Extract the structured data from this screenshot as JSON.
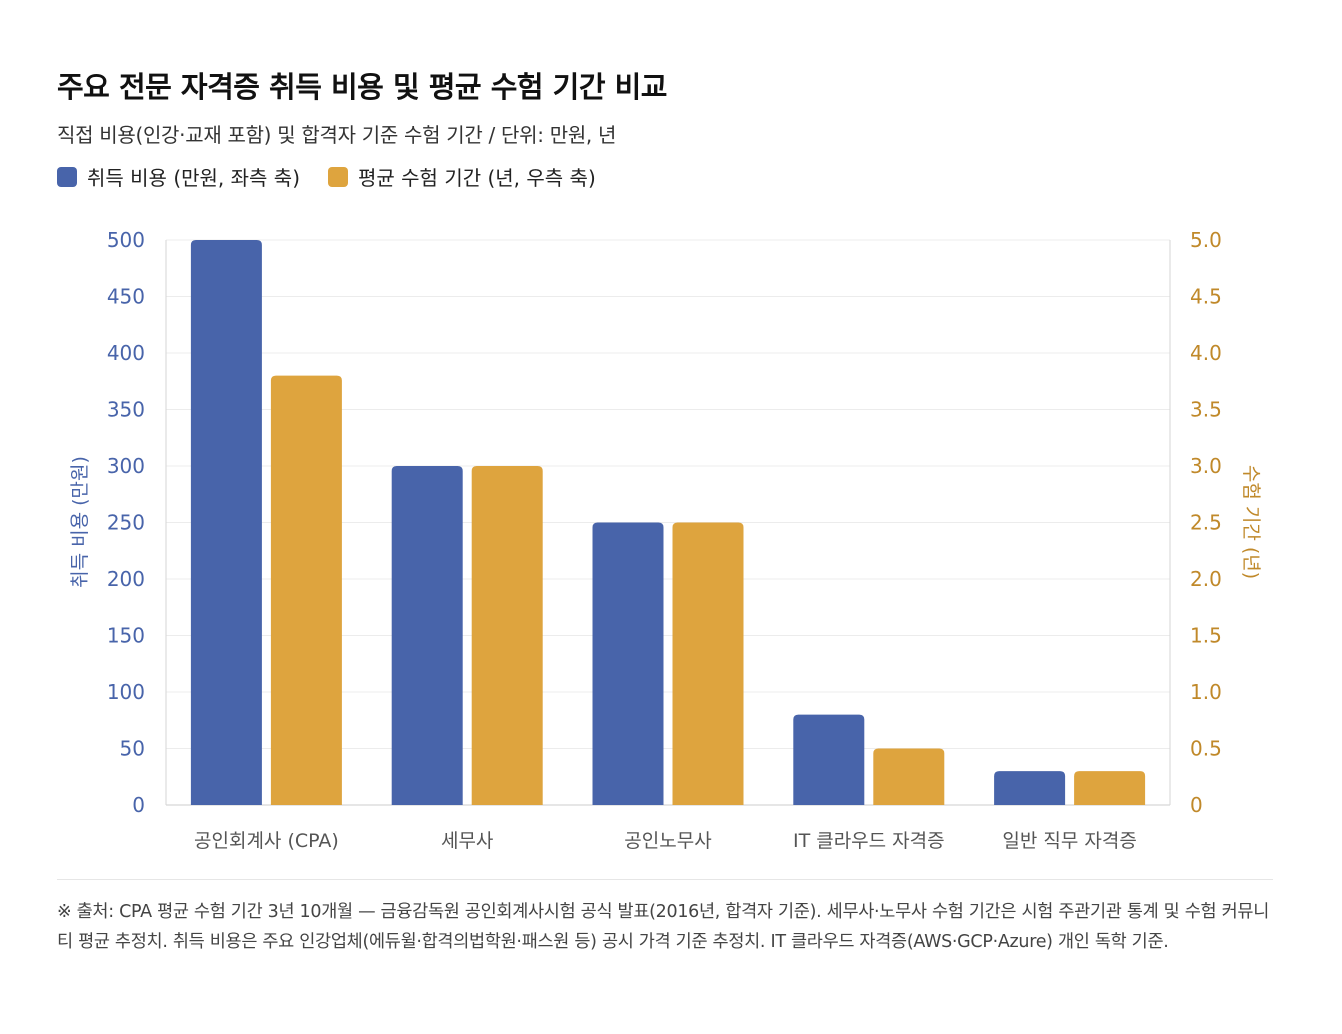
{
  "title": "주요 전문 자격증 취득 비용 및 평균 수험 기간 비교",
  "subtitle": "직접 비용(인강·교재 포함) 및 합격자 기준 수험 기간 / 단위: 만원, 년",
  "legend": [
    {
      "label": "취득 비용 (만원, 좌측 축)",
      "color": "#4864aa"
    },
    {
      "label": "평균 수험 기간 (년, 우측 축)",
      "color": "#dea43e"
    }
  ],
  "note": "※ 출처: CPA 평균 수험 기간 3년 10개월 — 금융감독원 공인회계사시험 공식 발표(2016년, 합격자 기준). 세무사·노무사 수험 기간은 시험 주관기관 통계 및 수험 커뮤니티 평균 추정치. 취득 비용은 주요 인강업체(에듀윌·합격의법학원·패스원 등) 공시 가격 기준 추정치. IT 클라우드 자격증(AWS·GCP·Azure) 개인 독학 기준.",
  "chart_data": {
    "type": "bar",
    "categories": [
      "공인회계사 (CPA)",
      "세무사",
      "공인노무사",
      "IT 클라우드 자격증",
      "일반 직무 자격증"
    ],
    "series": [
      {
        "name": "취득 비용 (만원, 좌측 축)",
        "axis": "left",
        "values": [
          500,
          300,
          250,
          80,
          30
        ],
        "color": "#4864aa"
      },
      {
        "name": "평균 수험 기간 (년, 우측 축)",
        "axis": "right",
        "values": [
          3.8,
          3.0,
          2.5,
          0.5,
          0.3
        ],
        "color": "#dea43e"
      }
    ],
    "ylabel": "취득 비용 (만원)",
    "ylabel_right": "수험 기간 (년)",
    "ylim": [
      0,
      500
    ],
    "ylim_right": [
      0,
      5
    ],
    "yticks": [
      "0",
      "50",
      "100",
      "150",
      "200",
      "250",
      "300",
      "350",
      "400",
      "450",
      "500"
    ],
    "yticks_right": [
      "0",
      "0.5",
      "1.0",
      "1.5",
      "2.0",
      "2.5",
      "3.0",
      "3.5",
      "4.0",
      "4.5",
      "5.0"
    ],
    "grid": true,
    "legend_position": "top-left"
  }
}
